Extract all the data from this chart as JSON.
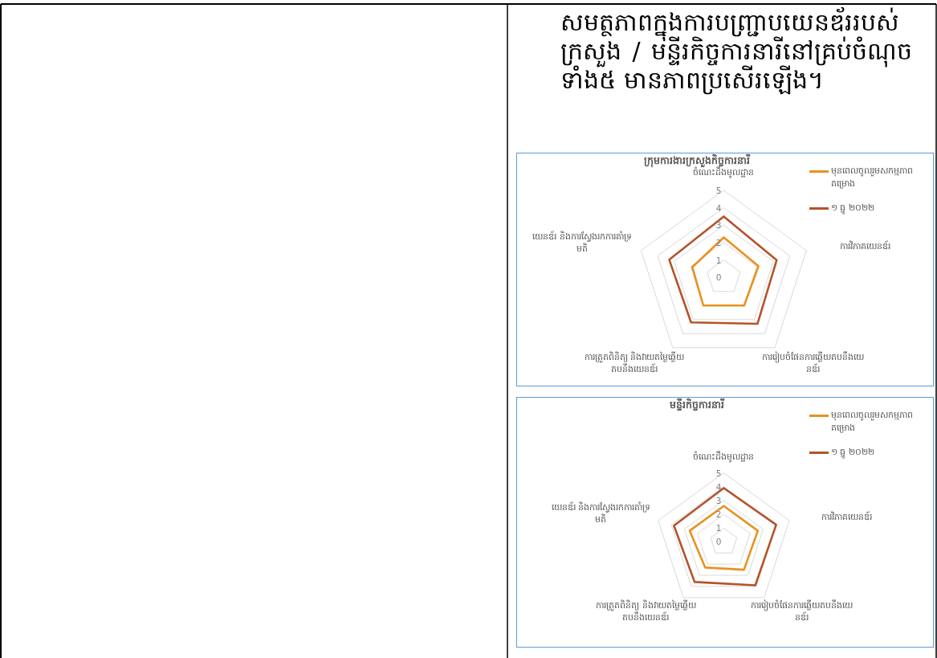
{
  "chart_data": [
    {
      "type": "other",
      "title": "សមត្ថភាពក្នុងការបញ្ជ្រាបយេនឌ័ររបស់ក្រសួង / មន្ទីរកិច្ចការនារីនៅគ្រប់ចំណុចទាំង៥ មានភាពប្រសើរឡើង។"
    },
    {
      "type": "radar",
      "title": "ក្រុមការងារក្រសួងកិច្ចការនារី",
      "categories": [
        "ចំណេះដឹងមូលដ្ឋាន",
        "ការវិភាគយេនឌ័រ",
        "ការរៀបចំផែនការឆ្លើយតបនឹងយេនឌ័រ",
        "ការត្រួតពិនិត្យ និងវាយតម្លៃឆ្លើយតបនឹងយេនឌ័រ",
        "យេនឌ័រ និងការស្វែងរកការគាំទ្រមតិ"
      ],
      "ylim": [
        0,
        5
      ],
      "yticks": [
        0,
        1,
        2,
        3,
        4,
        5
      ],
      "grid": true,
      "legend": "top right",
      "series": [
        {
          "name": "មុនពេលចូលរួមសកម្មភាពគម្រោង",
          "color": "#e8921e",
          "values": [
            2.3,
            2.1,
            2.0,
            2.0,
            1.9
          ]
        },
        {
          "name": "១ ធ្នូ ២០២២",
          "color": "#b5532a",
          "values": [
            3.5,
            3.2,
            3.3,
            3.2,
            3.3
          ]
        }
      ]
    },
    {
      "type": "radar",
      "title": "មន្ទីរកិច្ចការនារី",
      "categories": [
        "ចំណេះដឹងមូលដ្ឋាន",
        "ការវិភាគយេនឌ័រ",
        "ការរៀបចំផែនការឆ្លើយតបនឹងយេនឌ័រ",
        "ការត្រួតពិនិត្យ និងវាយតម្លៃឆ្លើយតបនឹងយេនឌ័រ",
        "យេនឌ័រ និងការស្វែងរកការគាំទ្រមតិ"
      ],
      "ylim": [
        0,
        5
      ],
      "yticks": [
        0,
        1,
        2,
        3,
        4,
        5
      ],
      "grid": true,
      "legend": "top right",
      "series": [
        {
          "name": "មុនពេលចូលរួមសកម្មភាពគម្រោង",
          "color": "#e8921e",
          "values": [
            2.6,
            2.6,
            2.5,
            2.3,
            2.6
          ]
        },
        {
          "name": "១ ធ្នូ ២០២២",
          "color": "#b5532a",
          "values": [
            3.9,
            4.0,
            3.9,
            3.6,
            3.8
          ]
        }
      ]
    }
  ]
}
